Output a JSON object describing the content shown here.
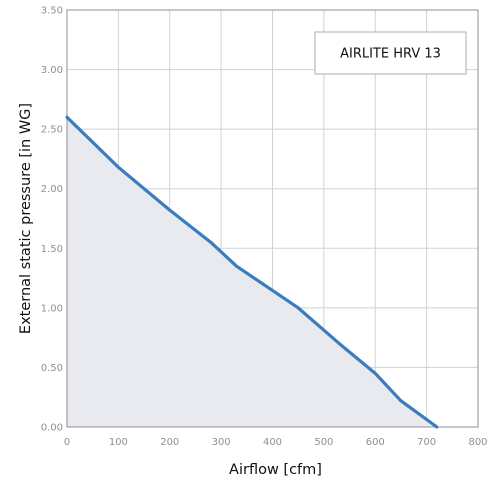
{
  "chart_data": {
    "type": "area",
    "xlabel": "Airflow [cfm]",
    "ylabel": "External static pressure [in WG]",
    "xlim": [
      0,
      800
    ],
    "ylim": [
      0,
      3.5
    ],
    "x_ticks": [
      "0",
      "100",
      "200",
      "300",
      "400",
      "500",
      "600",
      "700",
      "800"
    ],
    "y_ticks": [
      "0.00",
      "0.50",
      "1.00",
      "1.50",
      "2.00",
      "2.50",
      "3.00",
      "3.50"
    ],
    "grid": true,
    "legend_placement": "top-right",
    "series": [
      {
        "name": "AIRLITE HRV 13",
        "x": [
          0,
          100,
          200,
          280,
          330,
          450,
          530,
          600,
          650,
          720
        ],
        "y": [
          2.6,
          2.18,
          1.82,
          1.55,
          1.35,
          1.0,
          0.7,
          0.45,
          0.22,
          0.0
        ],
        "color": "#3a7cbd",
        "fill": "#e8eaef"
      }
    ]
  }
}
